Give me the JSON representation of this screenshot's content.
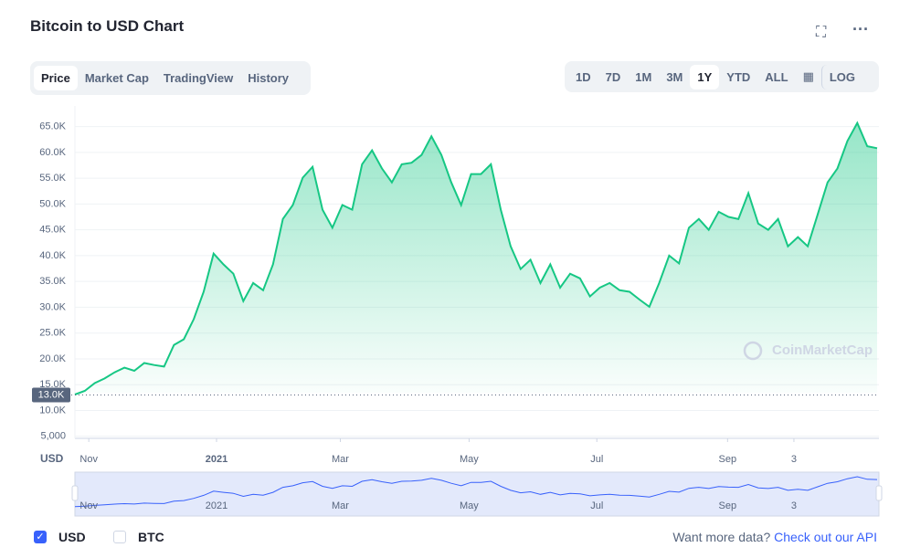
{
  "header": {
    "title": "Bitcoin to USD Chart"
  },
  "tabs": [
    "Price",
    "Market Cap",
    "TradingView",
    "History"
  ],
  "ranges": [
    "1D",
    "7D",
    "1M",
    "3M",
    "1Y",
    "YTD",
    "ALL"
  ],
  "log": "LOG",
  "chart_data": {
    "type": "area",
    "color": "#16c784",
    "watermark": "CoinMarketCap",
    "axis_label": "USD",
    "values": [
      13100,
      13800,
      15300,
      16200,
      17400,
      18300,
      17700,
      19200,
      18800,
      18500,
      22700,
      23800,
      27700,
      33000,
      40400,
      38300,
      36500,
      31200,
      34700,
      33300,
      38300,
      47100,
      49800,
      55100,
      57200,
      48900,
      45400,
      49800,
      48900,
      57700,
      60400,
      56900,
      54200,
      57700,
      58000,
      59500,
      63100,
      59500,
      54200,
      49800,
      55800,
      55800,
      57700,
      48900,
      41800,
      37400,
      39200,
      34700,
      38300,
      33800,
      36500,
      35600,
      32100,
      33800,
      34700,
      33300,
      33000,
      31500,
      30100,
      34700,
      40000,
      38500,
      45400,
      47100,
      45000,
      48500,
      47500,
      47100,
      52100,
      46200,
      45000,
      47100,
      41800,
      43600,
      41800,
      48000,
      54200,
      56900,
      62200,
      65700,
      61200,
      60800
    ],
    "ylim": [
      4600,
      69000
    ],
    "yticks": [
      {
        "value": 5000,
        "label": "5,000"
      },
      {
        "value": 10000,
        "label": "10.0K"
      },
      {
        "value": 15000,
        "label": "15.0K"
      },
      {
        "value": 20000,
        "label": "20.0K"
      },
      {
        "value": 25000,
        "label": "25.0K"
      },
      {
        "value": 30000,
        "label": "30.0K"
      },
      {
        "value": 35000,
        "label": "35.0K"
      },
      {
        "value": 40000,
        "label": "40.0K"
      },
      {
        "value": 45000,
        "label": "45.0K"
      },
      {
        "value": 50000,
        "label": "50.0K"
      },
      {
        "value": 55000,
        "label": "55.0K"
      },
      {
        "value": 60000,
        "label": "60.0K"
      },
      {
        "value": 65000,
        "label": "65.0K"
      }
    ],
    "xticks": [
      {
        "value": 1.4,
        "label": "Nov"
      },
      {
        "value": 14.3,
        "label": "2021"
      },
      {
        "value": 26.8,
        "label": "Mar"
      },
      {
        "value": 39.8,
        "label": "May"
      },
      {
        "value": 52.7,
        "label": "Jul"
      },
      {
        "value": 65.9,
        "label": "Sep"
      },
      {
        "value": 72.6,
        "label": "3"
      }
    ],
    "marker": {
      "value": 13000,
      "label": "13.0K"
    },
    "grid": true
  },
  "footer": {
    "options": [
      "USD",
      "BTC"
    ],
    "prompt": "Want more data?",
    "link": "Check out our API"
  }
}
